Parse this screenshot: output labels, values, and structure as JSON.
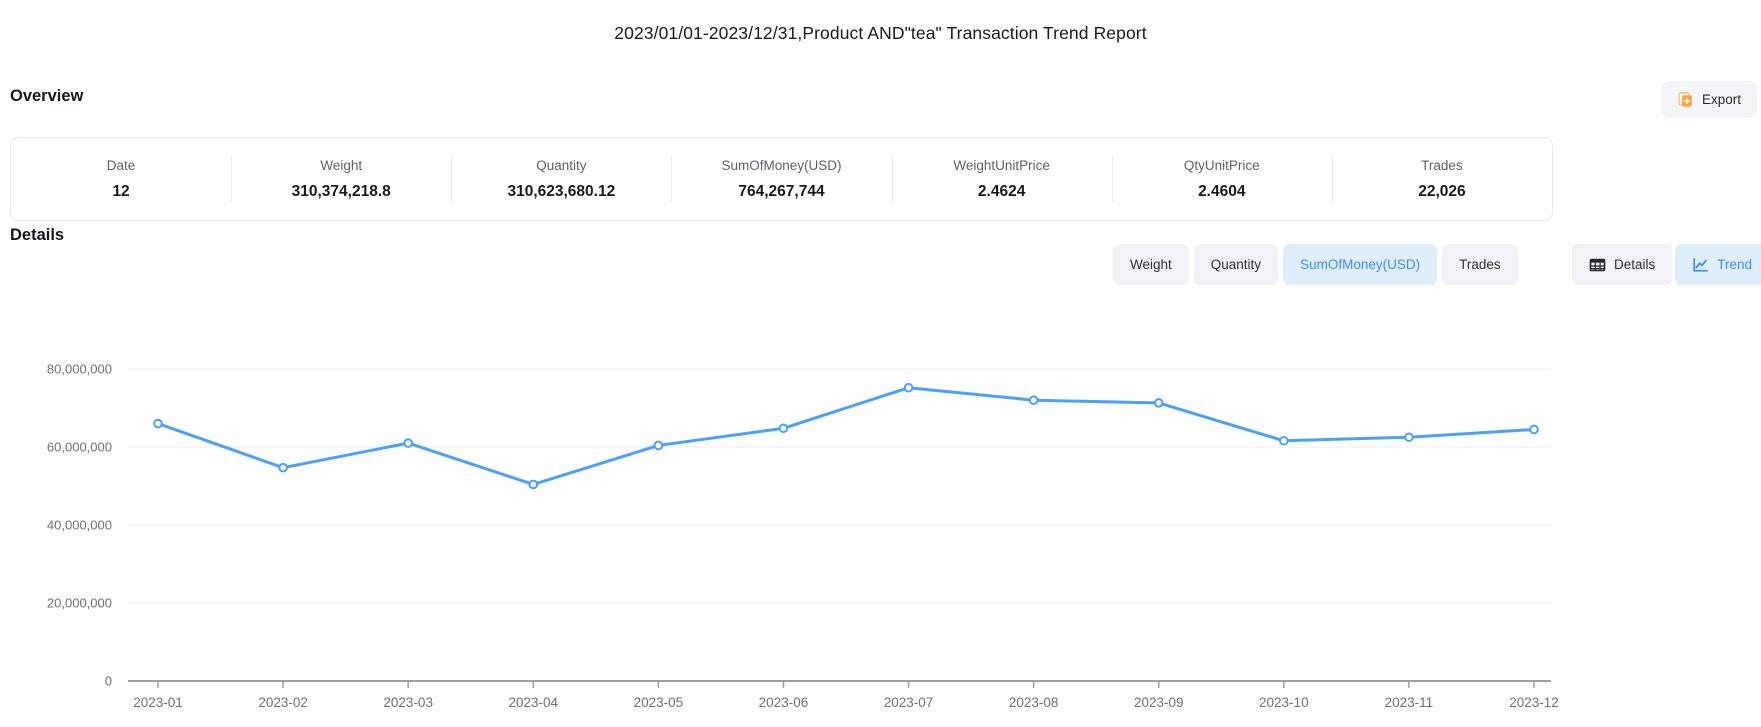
{
  "page": {
    "title": "2023/01/01-2023/12/31,Product AND\"tea\" Transaction Trend Report"
  },
  "overview": {
    "heading": "Overview",
    "export_label": "Export",
    "stats": [
      {
        "label": "Date",
        "value": "12"
      },
      {
        "label": "Weight",
        "value": "310,374,218.8"
      },
      {
        "label": "Quantity",
        "value": "310,623,680.12"
      },
      {
        "label": "SumOfMoney(USD)",
        "value": "764,267,744"
      },
      {
        "label": "WeightUnitPrice",
        "value": "2.4624"
      },
      {
        "label": "QtyUnitPrice",
        "value": "2.4604"
      },
      {
        "label": "Trades",
        "value": "22,026"
      }
    ]
  },
  "details": {
    "heading": "Details",
    "metric_tabs": [
      {
        "label": "Weight",
        "active": false
      },
      {
        "label": "Quantity",
        "active": false
      },
      {
        "label": "SumOfMoney(USD)",
        "active": true
      },
      {
        "label": "Trades",
        "active": false
      }
    ],
    "view_tabs": [
      {
        "label": "Details",
        "icon": "table-icon",
        "active": false
      },
      {
        "label": "Trend",
        "icon": "trend-icon",
        "active": true
      }
    ]
  },
  "colors": {
    "accent_blue": "#3d8df6",
    "accent_blue_bg": "#e0edfb",
    "line_blue": "#4ba0f8",
    "export_icon_orange": "#f7a63c",
    "export_icon_orange_light": "#fbc87d",
    "grid_line": "#eceef4",
    "axis_line": "#9b9ea3",
    "axis_text": "#6e7079",
    "table_icon_dark": "#26292e"
  },
  "chart_data": {
    "type": "line",
    "title": "",
    "xlabel": "",
    "ylabel": "",
    "categories": [
      "2023-01",
      "2023-02",
      "2023-03",
      "2023-04",
      "2023-05",
      "2023-06",
      "2023-07",
      "2023-08",
      "2023-09",
      "2023-10",
      "2023-11",
      "2023-12"
    ],
    "series": [
      {
        "name": "SumOfMoney(USD)",
        "values": [
          66000000,
          54700000,
          61000000,
          50400000,
          60400000,
          64800000,
          75200000,
          72000000,
          71300000,
          61600000,
          62500000,
          64500000
        ]
      }
    ],
    "ylim": [
      0,
      80000000
    ],
    "y_ticks": [
      0,
      20000000,
      40000000,
      60000000,
      80000000
    ],
    "y_tick_labels": [
      "0",
      "20,000,000",
      "40,000,000",
      "60,000,000",
      "80,000,000"
    ],
    "grid": true,
    "legend_position": "none",
    "point_style": "empty-circle"
  }
}
